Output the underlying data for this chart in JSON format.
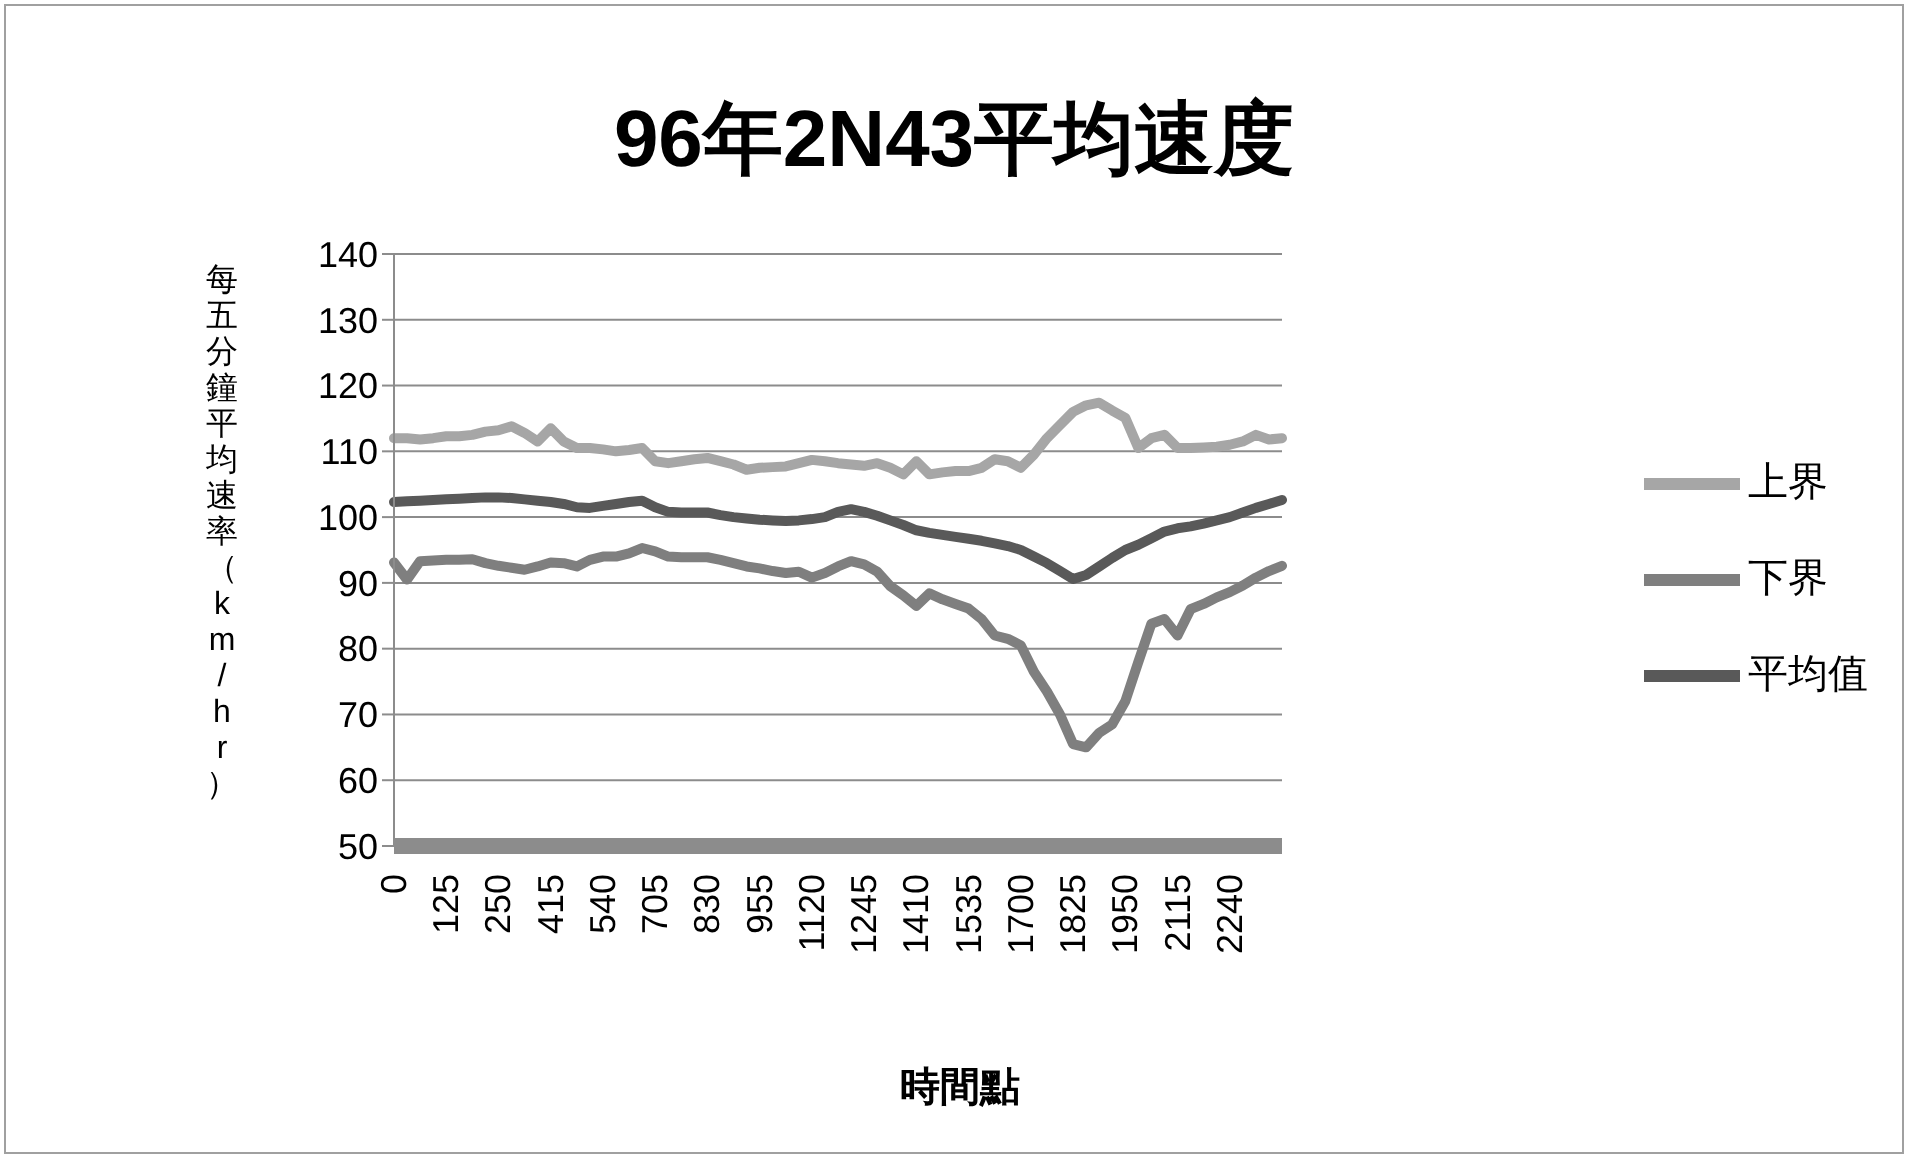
{
  "chart_data": {
    "type": "line",
    "title": "96年2N43平均速度",
    "xlabel": "時間點",
    "ylabel": "每五分鐘平均速率（km/hr）",
    "categories": [
      "0",
      null,
      null,
      null,
      "125",
      null,
      null,
      null,
      "250",
      null,
      null,
      null,
      "415",
      null,
      null,
      null,
      "540",
      null,
      null,
      null,
      "705",
      null,
      null,
      null,
      "830",
      null,
      null,
      null,
      "955",
      null,
      null,
      null,
      "1120",
      null,
      null,
      null,
      "1245",
      null,
      null,
      null,
      "1410",
      null,
      null,
      null,
      "1535",
      null,
      null,
      null,
      "1700",
      null,
      null,
      null,
      "1825",
      null,
      null,
      null,
      "1950",
      null,
      null,
      null,
      "2115",
      null,
      null,
      null,
      "2240",
      null,
      null,
      null,
      null
    ],
    "ylim": [
      50,
      140
    ],
    "yticks": [
      50,
      60,
      70,
      80,
      90,
      100,
      110,
      120,
      130,
      140
    ],
    "grid": "y",
    "legend": "right",
    "marker": "none",
    "line_style": "solid",
    "series": [
      {
        "name": "平均值",
        "color": "#595959",
        "values": [
          102.3,
          102.4,
          102.5,
          102.6,
          102.7,
          102.8,
          102.9,
          103,
          103,
          102.9,
          102.7,
          102.5,
          102.3,
          102,
          101.5,
          101.4,
          101.7,
          102,
          102.3,
          102.5,
          101.5,
          100.8,
          100.7,
          100.7,
          100.7,
          100.3,
          100,
          99.8,
          99.6,
          99.5,
          99.4,
          99.5,
          99.7,
          100,
          100.8,
          101.2,
          100.8,
          100.2,
          99.5,
          98.8,
          98,
          97.6,
          97.3,
          97,
          96.7,
          96.4,
          96,
          95.6,
          95,
          94,
          93,
          91.8,
          90.6,
          91.2,
          92.5,
          93.8,
          95,
          95.8,
          96.8,
          97.8,
          98.3,
          98.6,
          99,
          99.5,
          100,
          100.7,
          101.4,
          102,
          102.6
        ]
      },
      {
        "name": "上界",
        "color": "#a6a6a6",
        "values": [
          112,
          112,
          111.8,
          112,
          112.3,
          112.3,
          112.5,
          113,
          113.2,
          113.8,
          112.8,
          111.5,
          113.5,
          111.5,
          110.5,
          110.5,
          110.3,
          110,
          110.2,
          110.5,
          108.5,
          108.2,
          108.5,
          108.8,
          109,
          108.5,
          108,
          107.2,
          107.5,
          107.6,
          107.7,
          108.2,
          108.7,
          108.5,
          108.2,
          108,
          107.8,
          108.2,
          107.5,
          106.5,
          108.5,
          106.5,
          106.8,
          107,
          107,
          107.5,
          108.8,
          108.5,
          107.5,
          109.5,
          112,
          114,
          116,
          117,
          117.4,
          116.2,
          115.1,
          110.5,
          112,
          112.5,
          110.5,
          110.5,
          110.6,
          110.7,
          111,
          111.5,
          112.5,
          111.8,
          112
        ]
      },
      {
        "name": "下界",
        "color": "#7f7f7f",
        "values": [
          93.1,
          90.5,
          93.3,
          93.4,
          93.5,
          93.5,
          93.6,
          93,
          92.6,
          92.3,
          92,
          92.5,
          93.1,
          93,
          92.5,
          93.5,
          94,
          94,
          94.5,
          95.3,
          94.8,
          94,
          93.9,
          93.9,
          93.9,
          93.5,
          93,
          92.5,
          92.2,
          91.8,
          91.5,
          91.7,
          90.8,
          91.5,
          92.5,
          93.3,
          92.8,
          91.7,
          89.5,
          88.1,
          86.5,
          88.4,
          87.5,
          86.8,
          86.1,
          84.5,
          82,
          81.5,
          80.5,
          76.5,
          73.5,
          70,
          65.5,
          65,
          67.2,
          68.5,
          72,
          78,
          83.8,
          84.5,
          82,
          86,
          86.8,
          87.8,
          88.6,
          89.6,
          90.8,
          91.8,
          92.6
        ]
      }
    ]
  }
}
